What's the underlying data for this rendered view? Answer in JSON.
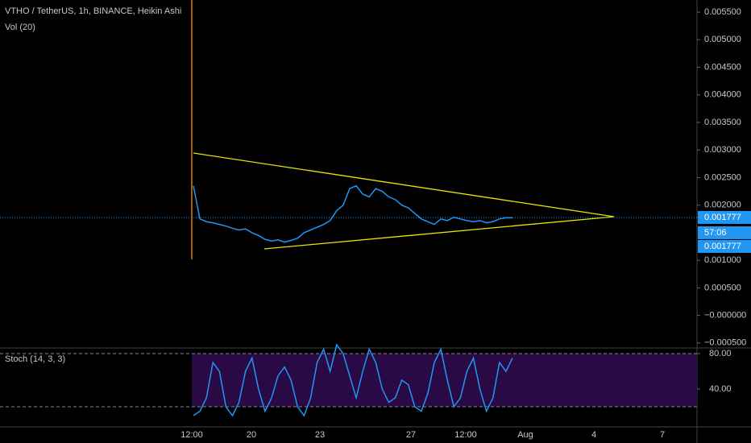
{
  "header": {
    "symbol": "VTHO / TetherUS, 1h, BINANCE, Heikin Ashi",
    "volume_indicator": "Vol (20)",
    "oscillator": "Stoch (14, 3, 3)"
  },
  "chart_data": {
    "type": "line",
    "series": [
      {
        "color": "#2196f3",
        "values": [
          0.00235,
          0.00175,
          0.0017,
          0.00168,
          0.00165,
          0.00162,
          0.00158,
          0.00155,
          0.00157,
          0.0015,
          0.00145,
          0.00138,
          0.00135,
          0.00137,
          0.00133,
          0.00136,
          0.0014,
          0.0015,
          0.00155,
          0.0016,
          0.00165,
          0.00172,
          0.0019,
          0.002,
          0.0023,
          0.00235,
          0.0022,
          0.00215,
          0.0023,
          0.00225,
          0.00215,
          0.0021,
          0.002,
          0.00195,
          0.00185,
          0.00175,
          0.0017,
          0.00165,
          0.00175,
          0.00172,
          0.00178,
          0.00175,
          0.00172,
          0.0017,
          0.00172,
          0.00168,
          0.0017,
          0.00175,
          0.00177,
          0.00177
        ]
      }
    ],
    "ylim": [
      -0.00059,
      0.00572
    ],
    "yticks": [
      {
        "value": 0.0055,
        "label": "0.005500"
      },
      {
        "value": 0.005,
        "label": "0.005000"
      },
      {
        "value": 0.0045,
        "label": "0.004500"
      },
      {
        "value": 0.004,
        "label": "0.004000"
      },
      {
        "value": 0.0035,
        "label": "0.003500"
      },
      {
        "value": 0.003,
        "label": "0.003000"
      },
      {
        "value": 0.0025,
        "label": "0.002500"
      },
      {
        "value": 0.002,
        "label": "0.002000"
      },
      {
        "value": 0.001,
        "label": "0.001000"
      },
      {
        "value": 0.0005,
        "label": "0.000500"
      },
      {
        "value": 0,
        "label": "−0.000000"
      },
      {
        "value": -0.0005,
        "label": "−0.000500"
      }
    ],
    "last_price": {
      "value": 0.001777,
      "label": "0.001777"
    },
    "price_tags": [
      "57:06",
      "0.001777"
    ],
    "xticks": [
      "12:00",
      "20",
      "23",
      "27",
      "12:00",
      "Aug",
      "4",
      "7"
    ],
    "grid": false
  },
  "stoch_data": {
    "type": "line",
    "series": [
      {
        "color": "#2196f3",
        "values": [
          10,
          15,
          30,
          70,
          60,
          20,
          10,
          25,
          60,
          75,
          40,
          15,
          30,
          55,
          65,
          50,
          20,
          10,
          30,
          70,
          85,
          60,
          90,
          80,
          55,
          30,
          60,
          85,
          70,
          40,
          25,
          30,
          50,
          45,
          20,
          15,
          35,
          70,
          85,
          50,
          20,
          30,
          60,
          75,
          40,
          15,
          30,
          70,
          60,
          75
        ]
      }
    ],
    "ylim": [
      -2.7,
      86.4
    ],
    "yticks": [
      {
        "value": 80,
        "label": "80.00"
      },
      {
        "value": 40,
        "label": "40.00"
      }
    ],
    "bands": [
      80,
      20
    ]
  }
}
